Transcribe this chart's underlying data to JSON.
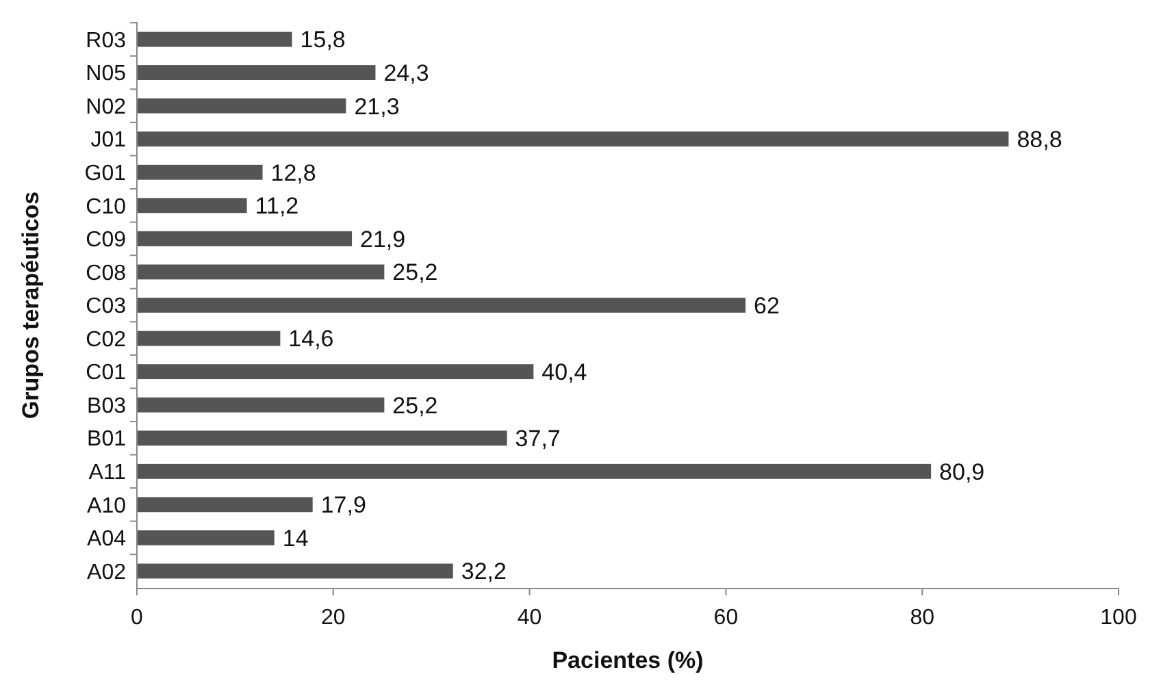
{
  "chart_data": {
    "type": "bar",
    "orientation": "horizontal",
    "xlabel": "Pacientes (%)",
    "ylabel": "Grupos terapéuticos",
    "categories": [
      "R03",
      "N05",
      "N02",
      "J01",
      "G01",
      "C10",
      "C09",
      "C08",
      "C03",
      "C02",
      "C01",
      "B03",
      "B01",
      "A11",
      "A10",
      "A04",
      "A02"
    ],
    "values": [
      15.8,
      24.3,
      21.3,
      88.8,
      12.8,
      11.2,
      21.9,
      25.2,
      62,
      14.6,
      40.4,
      25.2,
      37.7,
      80.9,
      17.9,
      14,
      32.2
    ],
    "value_labels": [
      "15,8",
      "24,3",
      "21,3",
      "88,8",
      "12,8",
      "11,2",
      "21,9",
      "25,2",
      "62",
      "14,6",
      "40,4",
      "25,2",
      "37,7",
      "80,9",
      "17,9",
      "14",
      "32,2"
    ],
    "color": "#555555",
    "xlim": [
      0,
      100
    ],
    "xticks": [
      0,
      20,
      40,
      60,
      80,
      100
    ],
    "grid": false
  }
}
